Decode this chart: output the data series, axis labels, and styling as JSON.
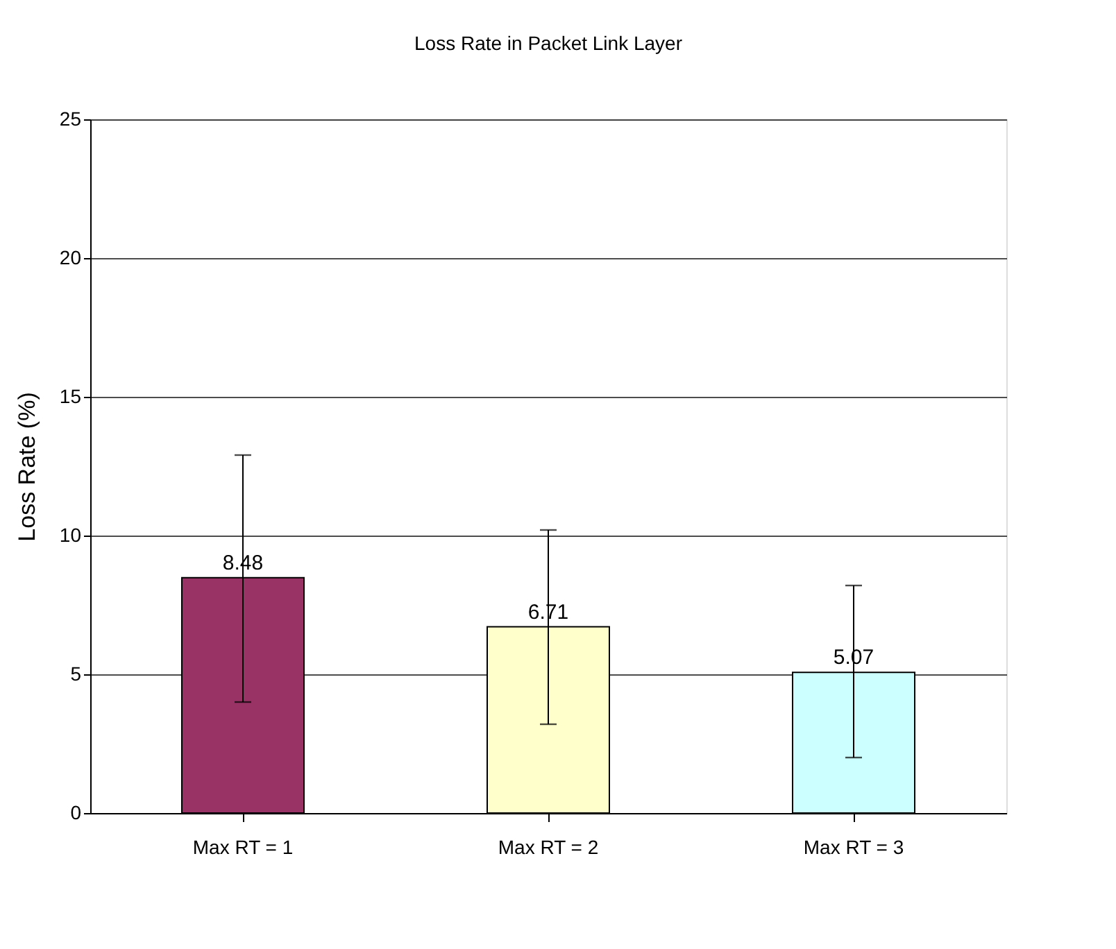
{
  "chart_data": {
    "type": "bar",
    "title": "Loss Rate in Packet Link Layer",
    "ylabel": "Loss Rate (%)",
    "categories": [
      "Max RT = 1",
      "Max RT = 2",
      "Max RT = 3"
    ],
    "values": [
      8.48,
      6.71,
      5.07
    ],
    "colors": [
      "#993366",
      "#ffffcc",
      "#ccffff"
    ],
    "errors": [
      [
        4.0,
        12.9
      ],
      [
        3.2,
        10.2
      ],
      [
        2.0,
        8.2
      ]
    ],
    "data_labels": true,
    "ylim": [
      0,
      25
    ],
    "yticks": [
      0,
      5,
      10,
      15,
      20,
      25
    ],
    "grid": "y",
    "legend": false
  }
}
